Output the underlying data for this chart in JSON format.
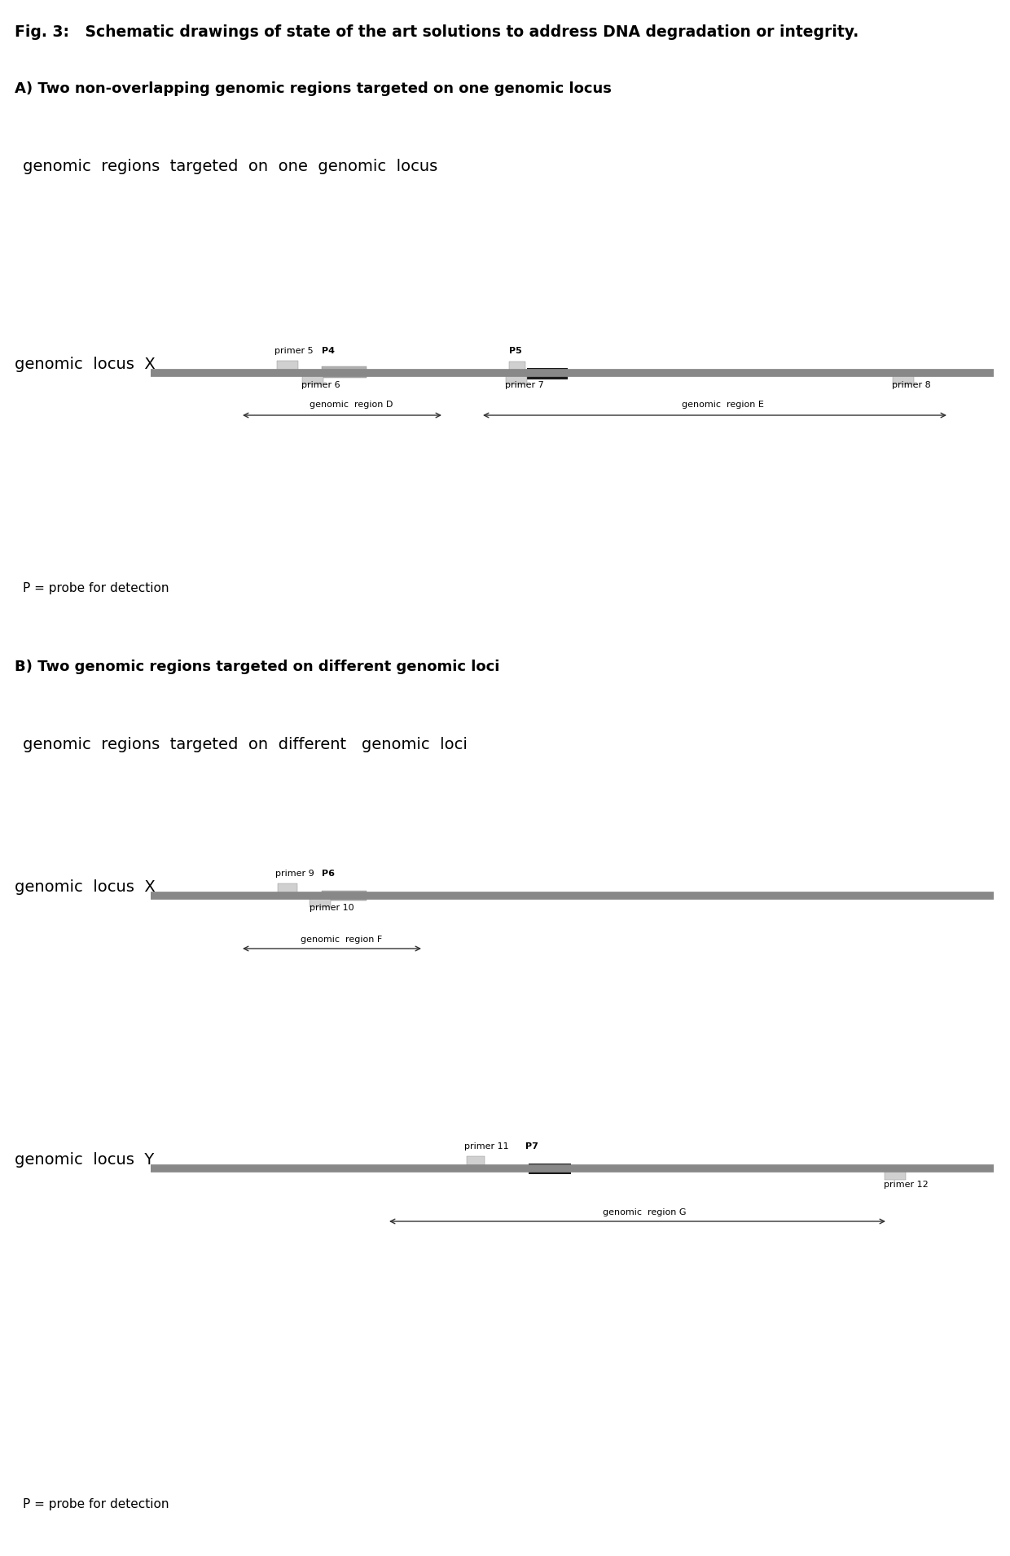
{
  "fig_title": "Fig. 3:   Schematic drawings of state of the art solutions to address DNA degradation or integrity.",
  "section_A_title": "A) Two non-overlapping genomic regions targeted on one genomic locus",
  "section_A_subtitle": "genomic  regions  targeted  on  one  genomic  locus",
  "section_B_title": "B) Two genomic regions targeted on different genomic loci",
  "section_B_subtitle": "genomic  regions  targeted  on  different   genomic  loci",
  "probe_note": "P = probe for detection",
  "bg_color": "#ffffff"
}
